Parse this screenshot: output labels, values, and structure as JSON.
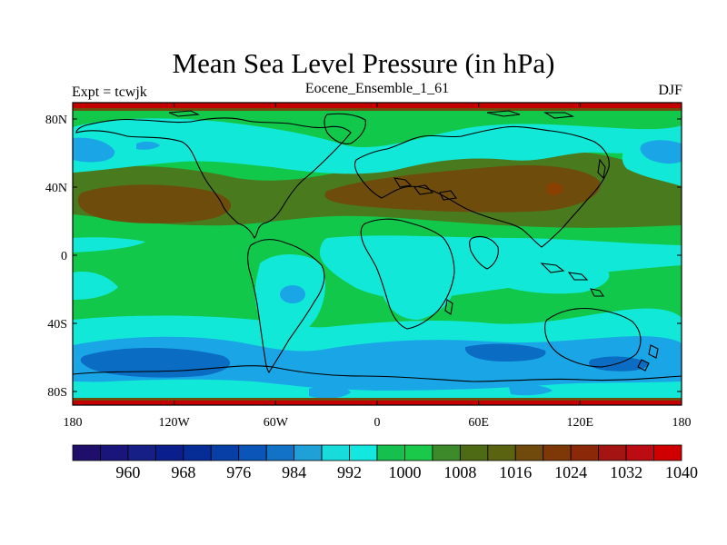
{
  "header": {
    "title": "Mean Sea Level Pressure (in hPa)",
    "left_label": "Expt = tcwjk",
    "center_label": "Eocene_Ensemble_1_61",
    "right_label": "DJF"
  },
  "axes": {
    "y_ticks": [
      "80N",
      "40N",
      "0",
      "40S",
      "80S"
    ],
    "x_ticks": [
      "180",
      "120W",
      "60W",
      "0",
      "60E",
      "120E",
      "180"
    ]
  },
  "colorbar": {
    "colors": [
      "#1f0f6b",
      "#1a157a",
      "#161f85",
      "#0b1f8c",
      "#062d96",
      "#073fa6",
      "#0b55b9",
      "#1272c6",
      "#1fa0d6",
      "#18dcdb",
      "#14e6e0",
      "#16c04e",
      "#1ac94a",
      "#3d8a2a",
      "#4e6a14",
      "#5a6410",
      "#704a0c",
      "#7e3808",
      "#8a2808",
      "#a41412",
      "#ba0c12",
      "#d00000"
    ],
    "labels": [
      "960",
      "968",
      "976",
      "984",
      "992",
      "1000",
      "1008",
      "1016",
      "1024",
      "1032",
      "1040"
    ]
  },
  "field_colors": {
    "high_red": "#c40000",
    "very_high": "#8b4000",
    "high": "#6e4c0c",
    "mid_high": "#4a7a1e",
    "normal": "#12c84a",
    "low": "#12e8d8",
    "lower": "#1aa6e6",
    "lowest": "#0a6cc2",
    "deep": "#0a50b4"
  }
}
